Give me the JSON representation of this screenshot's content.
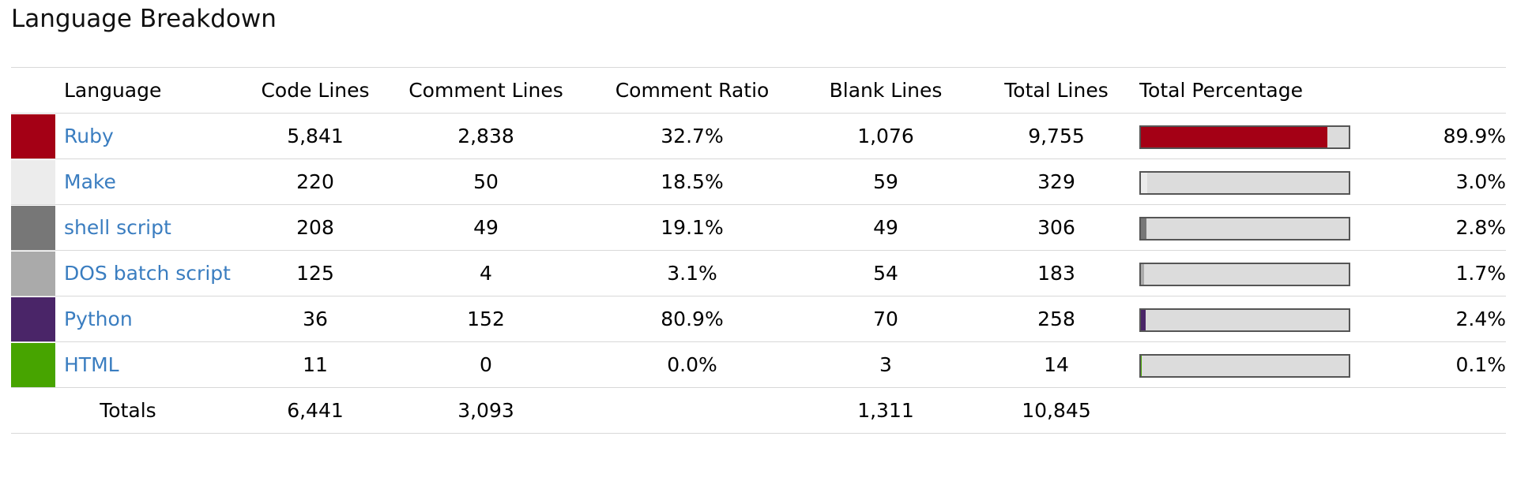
{
  "title": "Language Breakdown",
  "headers": {
    "language": "Language",
    "code_lines": "Code Lines",
    "comment_lines": "Comment Lines",
    "comment_ratio": "Comment Ratio",
    "blank_lines": "Blank Lines",
    "total_lines": "Total Lines",
    "total_percentage": "Total Percentage"
  },
  "rows": [
    {
      "language": "Ruby",
      "color": "#a40015",
      "code_lines": "5,841",
      "comment_lines": "2,838",
      "comment_ratio": "32.7%",
      "blank_lines": "1,076",
      "total_lines": "9,755",
      "total_percentage": "89.9%",
      "share": 89.9
    },
    {
      "language": "Make",
      "color": "#ececec",
      "code_lines": "220",
      "comment_lines": "50",
      "comment_ratio": "18.5%",
      "blank_lines": "59",
      "total_lines": "329",
      "total_percentage": "3.0%",
      "share": 3.0
    },
    {
      "language": "shell script",
      "color": "#777777",
      "code_lines": "208",
      "comment_lines": "49",
      "comment_ratio": "19.1%",
      "blank_lines": "49",
      "total_lines": "306",
      "total_percentage": "2.8%",
      "share": 2.8
    },
    {
      "language": "DOS batch script",
      "color": "#aaaaaa",
      "code_lines": "125",
      "comment_lines": "4",
      "comment_ratio": "3.1%",
      "blank_lines": "54",
      "total_lines": "183",
      "total_percentage": "1.7%",
      "share": 1.7
    },
    {
      "language": "Python",
      "color": "#4a2568",
      "code_lines": "36",
      "comment_lines": "152",
      "comment_ratio": "80.9%",
      "blank_lines": "70",
      "total_lines": "258",
      "total_percentage": "2.4%",
      "share": 2.4
    },
    {
      "language": "HTML",
      "color": "#47a400",
      "code_lines": "11",
      "comment_lines": "0",
      "comment_ratio": "0.0%",
      "blank_lines": "3",
      "total_lines": "14",
      "total_percentage": "0.1%",
      "share": 0.1
    }
  ],
  "totals": {
    "label": "Totals",
    "code_lines": "6,441",
    "comment_lines": "3,093",
    "blank_lines": "1,311",
    "total_lines": "10,845"
  },
  "colors": {
    "link": "#3a7dc0",
    "bar_track": "#dcdcdc",
    "bar_border": "#555555",
    "rule": "#d8d8d8"
  }
}
